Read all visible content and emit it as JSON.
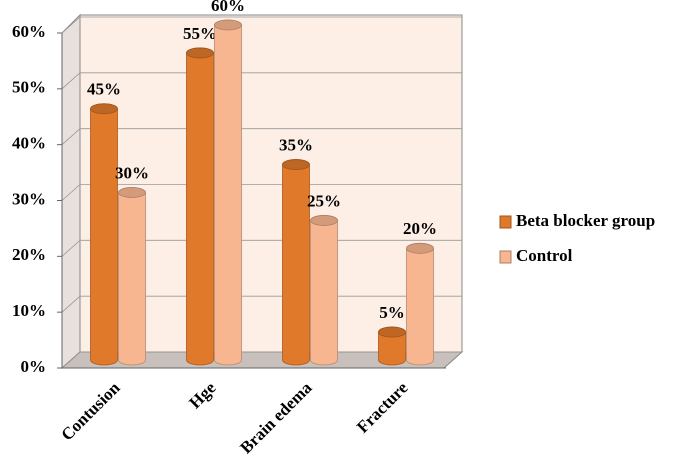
{
  "chart_data": {
    "type": "bar",
    "categories": [
      "Contusion",
      "Hge",
      "Brain edema",
      "Fracture"
    ],
    "series": [
      {
        "name": "Beta blocker group",
        "color": "#e0792a",
        "values": [
          45,
          55,
          35,
          5
        ],
        "value_labels": [
          "45%",
          "55%",
          "35%",
          "5%"
        ]
      },
      {
        "name": "Control",
        "color": "#f8b690",
        "values": [
          30,
          60,
          25,
          20
        ],
        "value_labels": [
          "30%",
          "60%",
          "25%",
          "20%"
        ]
      }
    ],
    "ylim": [
      0,
      60
    ],
    "yticks": [
      {
        "value": 0,
        "label": "0%"
      },
      {
        "value": 10,
        "label": "10%"
      },
      {
        "value": 20,
        "label": "20%"
      },
      {
        "value": 30,
        "label": "30%"
      },
      {
        "value": 40,
        "label": "40%"
      },
      {
        "value": 50,
        "label": "50%"
      },
      {
        "value": 60,
        "label": "60%"
      }
    ],
    "grid": true,
    "legend": "right"
  }
}
